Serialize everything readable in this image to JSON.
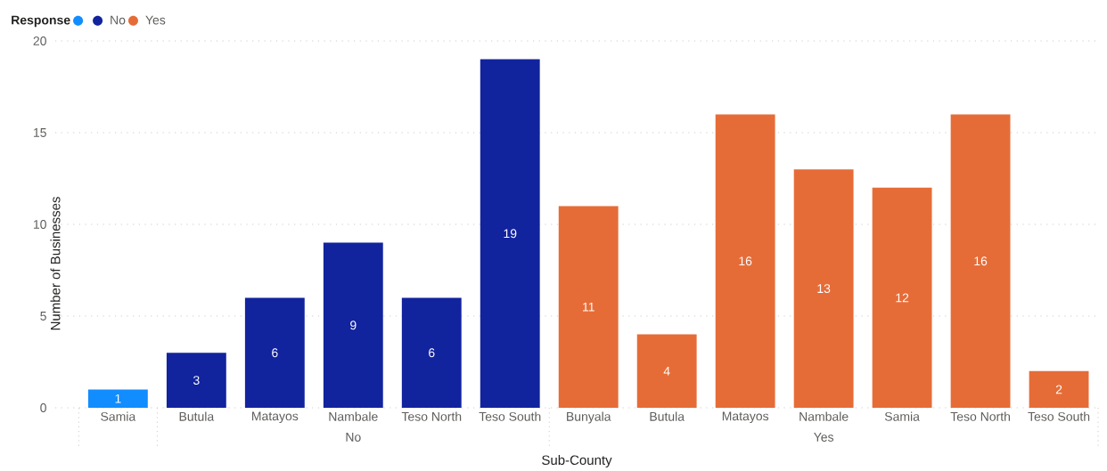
{
  "chart_data": {
    "type": "bar",
    "legend_title": "Response",
    "xlabel": "Sub-County",
    "ylabel": "Number of Businesses",
    "categories": [
      "Samia",
      "Butula",
      "Matayos",
      "Nambale",
      "Teso North",
      "Teso South",
      "Bunyala",
      "Butula",
      "Matayos",
      "Nambale",
      "Samia",
      "Teso North",
      "Teso South"
    ],
    "series": [
      {
        "color": "#118dff",
        "values": [
          1,
          null,
          null,
          null,
          null,
          null,
          null,
          null,
          null,
          null,
          null,
          null,
          null
        ]
      },
      {
        "name": "No",
        "color": "#12239e",
        "values": [
          null,
          3,
          6,
          9,
          6,
          19,
          null,
          null,
          null,
          null,
          null,
          null,
          null
        ]
      },
      {
        "name": "Yes",
        "color": "#e66c37",
        "values": [
          null,
          null,
          null,
          null,
          null,
          null,
          11,
          4,
          16,
          13,
          12,
          16,
          2
        ]
      }
    ],
    "ylim": [
      0,
      20
    ],
    "yticks": [
      0,
      5,
      10,
      15,
      20
    ],
    "grid": "y",
    "legend": "top left",
    "data_labels": true
  }
}
